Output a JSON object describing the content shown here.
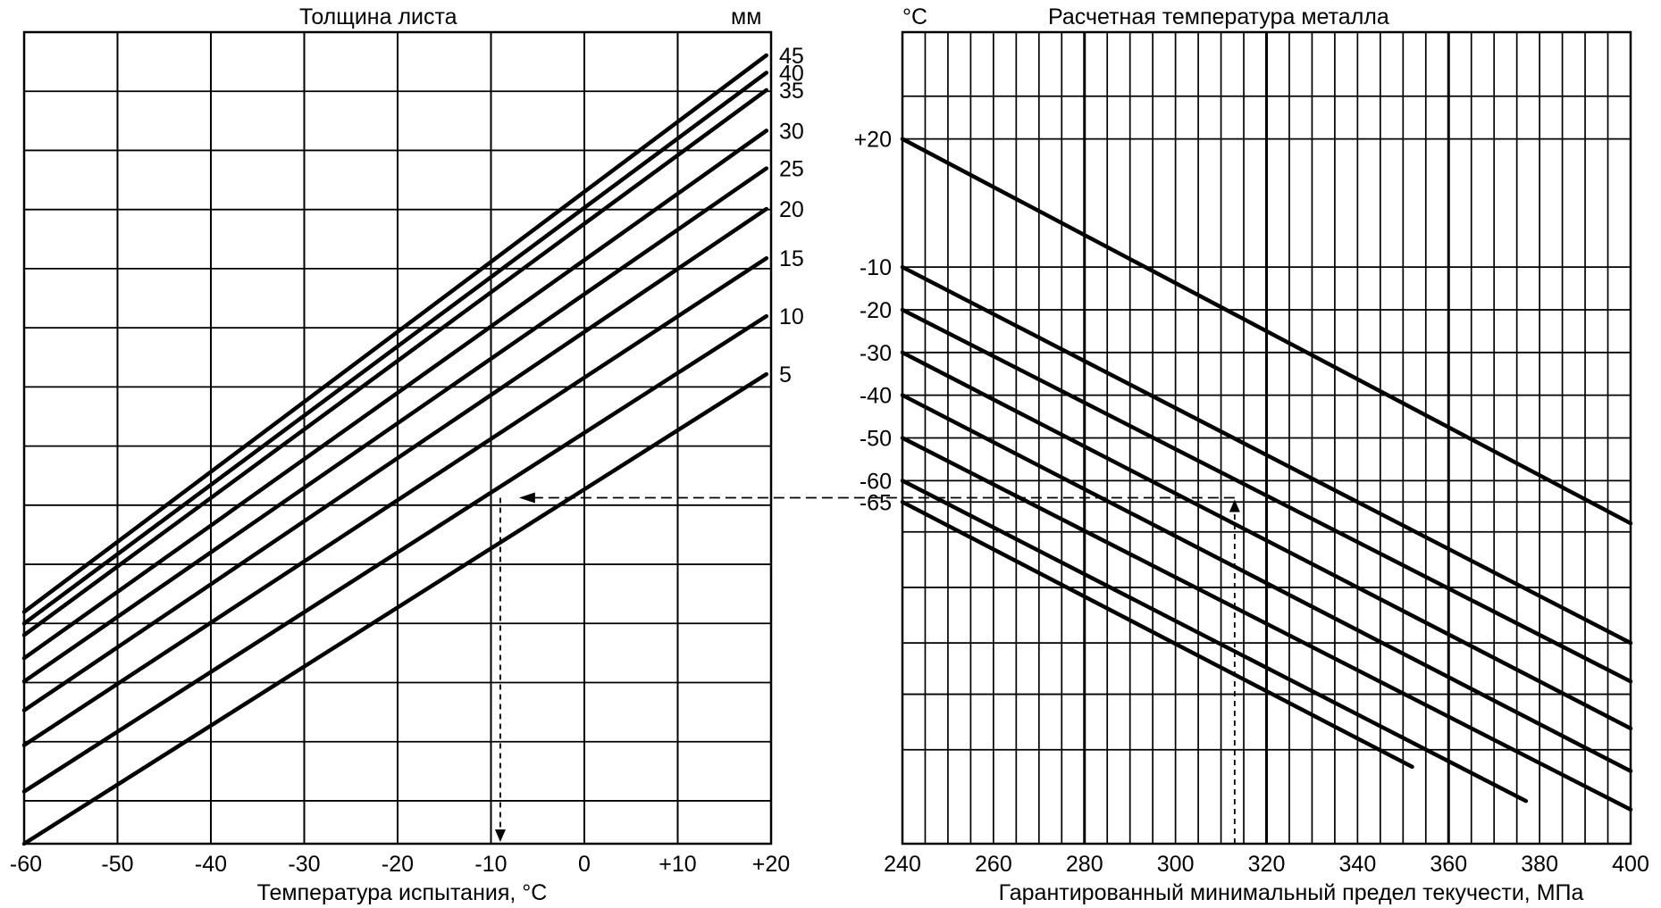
{
  "chart_data": [
    {
      "type": "line",
      "title": "Толщина листа",
      "series_unit": "мм",
      "xlabel": "Температура испытания, °C",
      "xlim": [
        -60,
        20
      ],
      "x_ticks": [
        -60,
        -50,
        -40,
        -30,
        -20,
        -10,
        0,
        10,
        20
      ],
      "x_tick_labels": [
        "-60",
        "-50",
        "-40",
        "-30",
        "-20",
        "-10",
        "0",
        "+10",
        "+20"
      ],
      "grid": true,
      "series": [
        {
          "name": "45",
          "points": [
            [
              -60,
              4
            ],
            [
              19.5,
              100
            ]
          ]
        },
        {
          "name": "40",
          "points": [
            [
              -60,
              2
            ],
            [
              19.5,
              97
            ]
          ]
        },
        {
          "name": "35",
          "points": [
            [
              -60,
              0
            ],
            [
              19.5,
              94
            ]
          ]
        },
        {
          "name": "30",
          "points": [
            [
              -60,
              -4
            ],
            [
              19.5,
              87
            ]
          ]
        },
        {
          "name": "25",
          "points": [
            [
              -60,
              -8
            ],
            [
              19.5,
              80.5
            ]
          ]
        },
        {
          "name": "20",
          "points": [
            [
              -60,
              -13
            ],
            [
              19.5,
              73.5
            ]
          ]
        },
        {
          "name": "15",
          "points": [
            [
              -60,
              -19
            ],
            [
              19.5,
              65
            ]
          ]
        },
        {
          "name": "10",
          "points": [
            [
              -60,
              -27
            ],
            [
              19.5,
              55
            ]
          ]
        },
        {
          "name": "5",
          "points": [
            [
              -60,
              -36
            ],
            [
              19.5,
              45
            ]
          ]
        }
      ],
      "annotation": {
        "x": -9,
        "label": ""
      }
    },
    {
      "type": "line",
      "title": "Расчетная температура металла",
      "yunit": "°C",
      "xlabel": "Гарантированный минимальный предел текучести, МПа",
      "xlim": [
        240,
        400
      ],
      "x_ticks": [
        240,
        260,
        280,
        300,
        320,
        340,
        360,
        380,
        400
      ],
      "x_tick_labels": [
        "240",
        "260",
        "280",
        "300",
        "320",
        "340",
        "360",
        "380",
        "400"
      ],
      "grid": true,
      "series": [
        {
          "name": "+20",
          "points": [
            [
              240,
              20
            ],
            [
              400,
              -70
            ]
          ]
        },
        {
          "name": "-10",
          "points": [
            [
              240,
              -10
            ],
            [
              400,
              -98
            ]
          ]
        },
        {
          "name": "-20",
          "points": [
            [
              240,
              -20
            ],
            [
              400,
              -107
            ]
          ]
        },
        {
          "name": "-30",
          "points": [
            [
              240,
              -30
            ],
            [
              400,
              -118
            ]
          ]
        },
        {
          "name": "-40",
          "points": [
            [
              240,
              -40
            ],
            [
              400,
              -128
            ]
          ]
        },
        {
          "name": "-50",
          "points": [
            [
              240,
              -50
            ],
            [
              400,
              -137
            ]
          ]
        },
        {
          "name": "-60",
          "points": [
            [
              240,
              -60
            ],
            [
              377,
              -135
            ]
          ]
        },
        {
          "name": "-65",
          "points": [
            [
              240,
              -65
            ],
            [
              352,
              -127
            ]
          ]
        }
      ],
      "y_labels": [
        "+20",
        "-10",
        "-20",
        "-30",
        "-40",
        "-50",
        "-60",
        "-65"
      ],
      "annotation": {
        "x": 313,
        "y": -64
      }
    }
  ],
  "colors": {
    "line": "#000000",
    "background": "#ffffff"
  }
}
